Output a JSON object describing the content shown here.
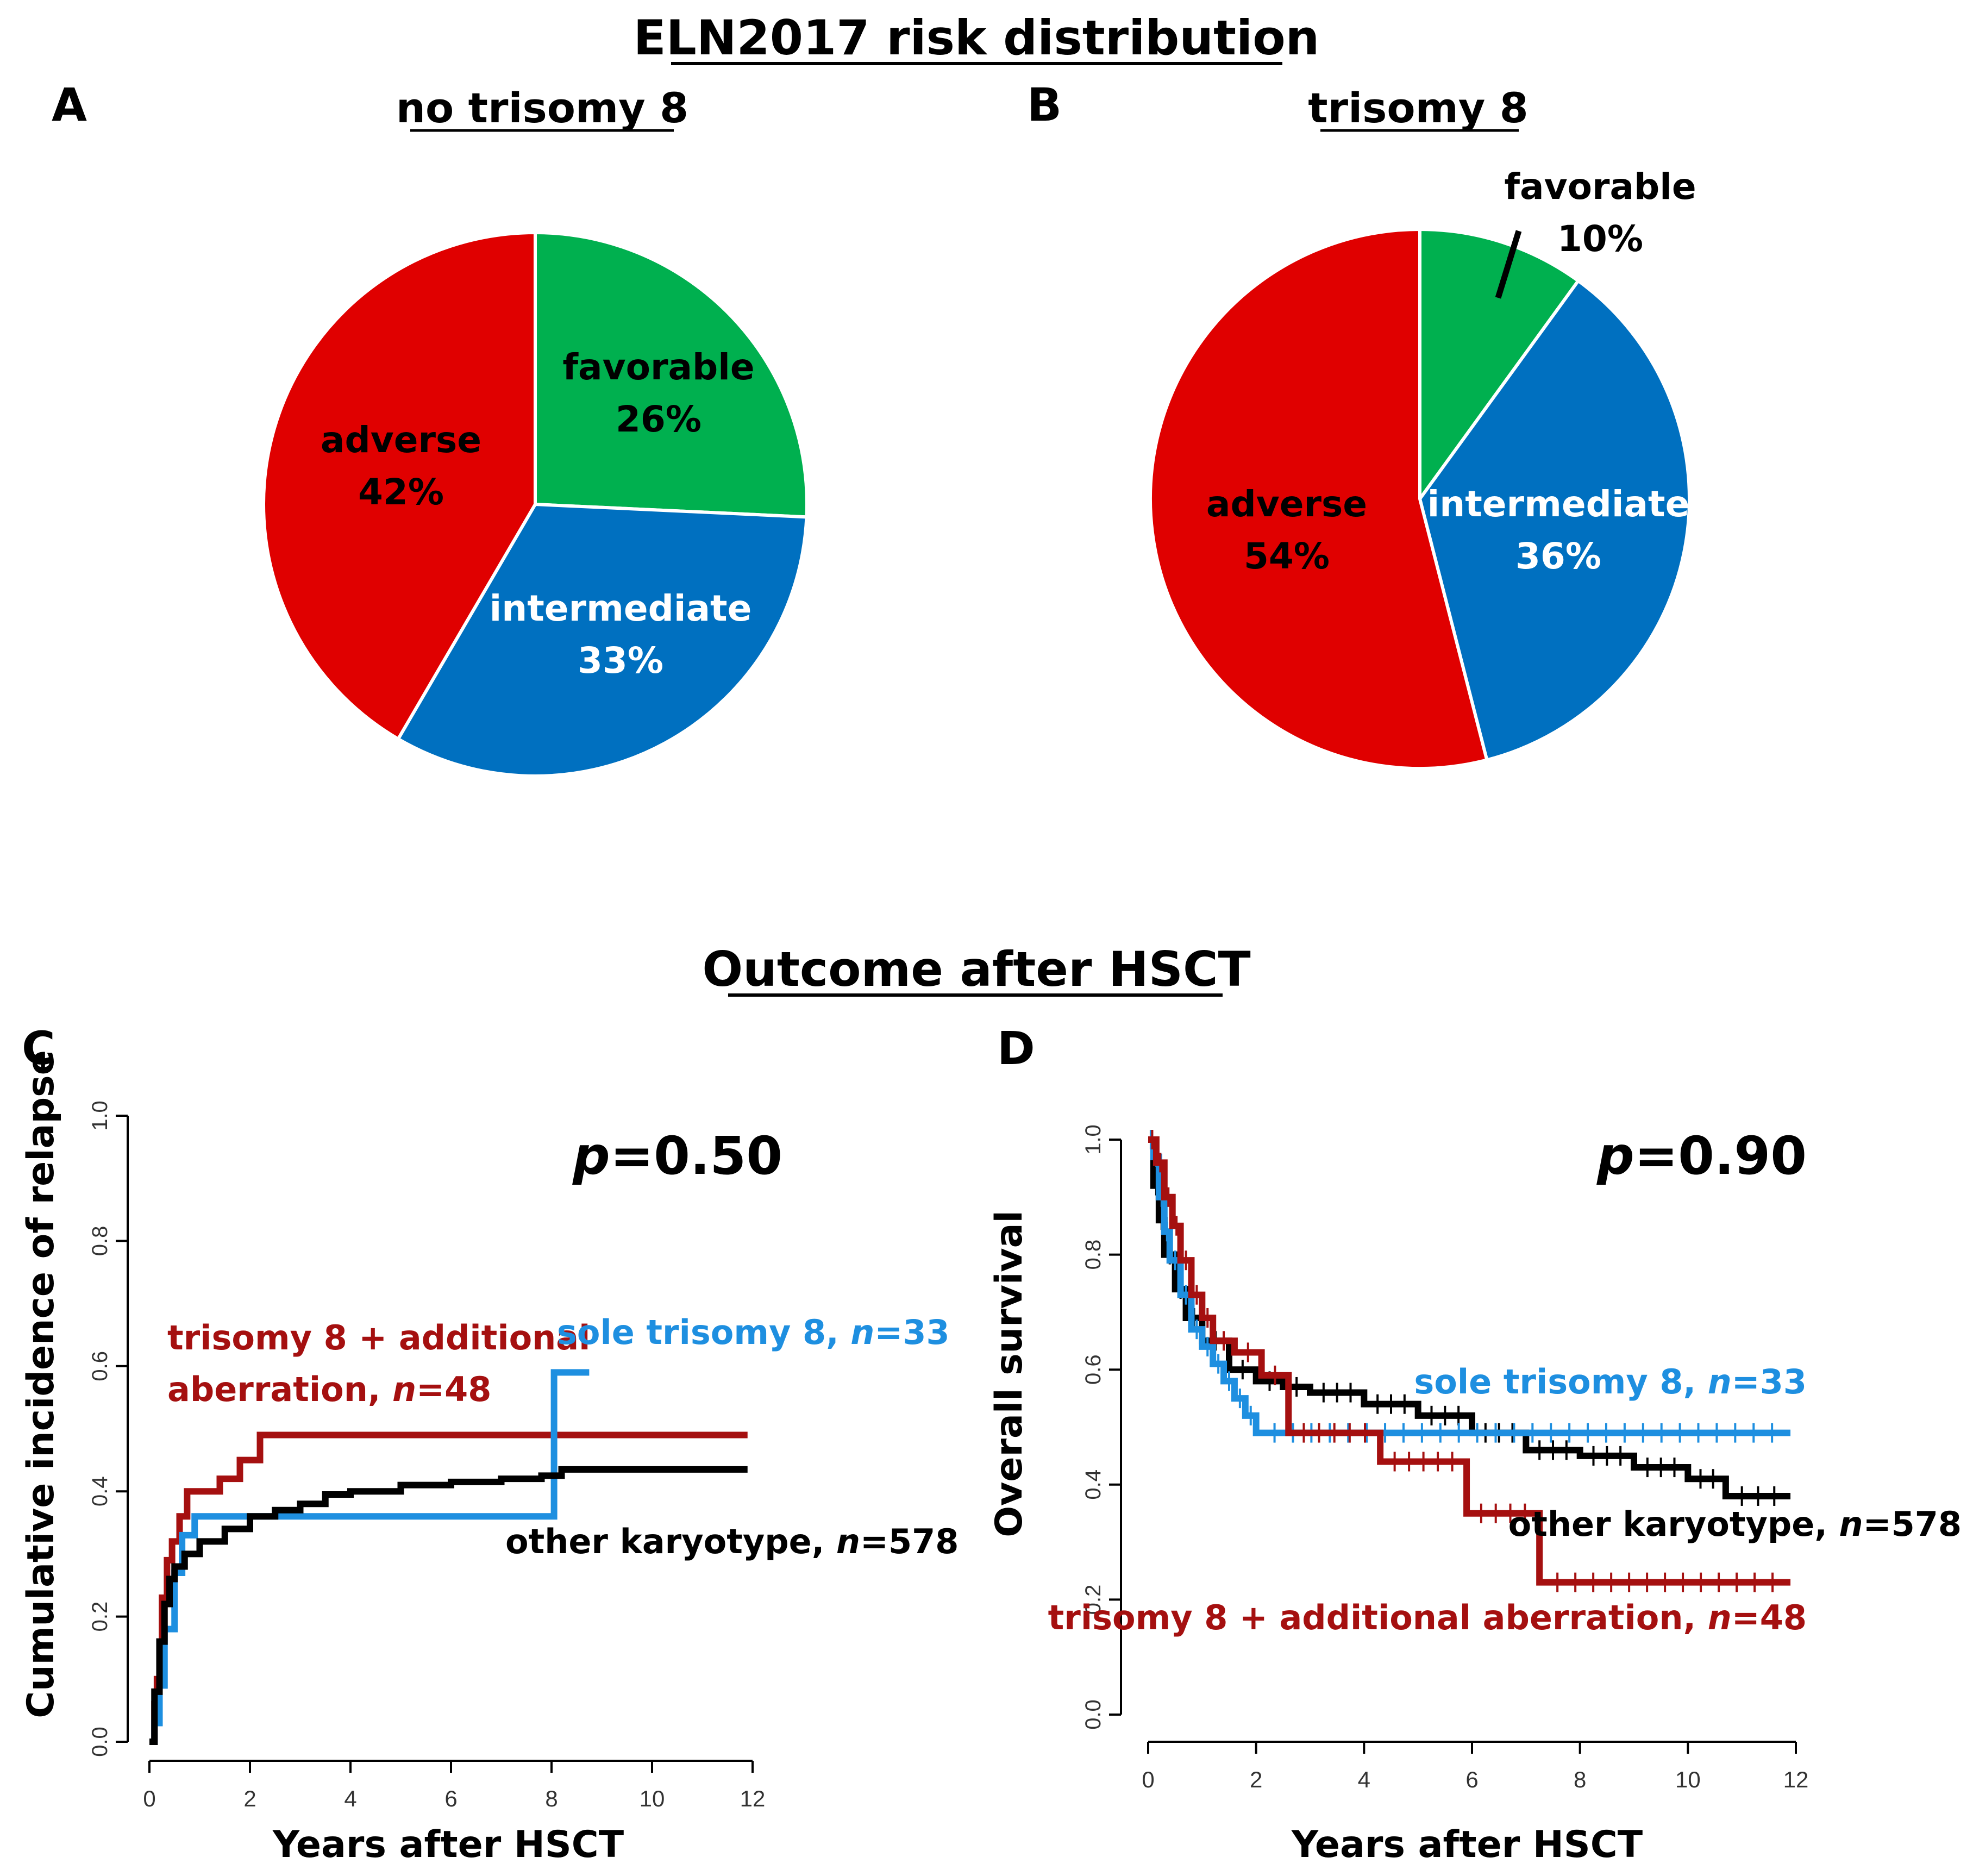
{
  "colors": {
    "adverse": "#e00000",
    "favorable": "#00b04f",
    "intermediate": "#0070c0",
    "trisomy_additional": "#a51010",
    "sole_trisomy": "#1e8fe0",
    "other_karyotype": "#000000"
  },
  "titles": {
    "top": "ELN2017 risk distribution",
    "bottom": "Outcome after HSCT"
  },
  "chart_data": [
    {
      "type": "pie",
      "panel": "A",
      "title": "no trisomy 8",
      "slices": [
        {
          "name": "favorable",
          "pct_label": "26%",
          "value": 26
        },
        {
          "name": "intermediate",
          "pct_label": "33%",
          "value": 33
        },
        {
          "name": "adverse",
          "pct_label": "42%",
          "value": 42
        }
      ]
    },
    {
      "type": "pie",
      "panel": "B",
      "title": "trisomy 8",
      "slices": [
        {
          "name": "favorable",
          "pct_label": "10%",
          "value": 10
        },
        {
          "name": "intermediate",
          "pct_label": "36%",
          "value": 36
        },
        {
          "name": "adverse",
          "pct_label": "54%",
          "value": 54
        }
      ]
    },
    {
      "type": "line",
      "panel": "C",
      "xlabel": "Years after HSCT",
      "ylabel": "Cumulative incidence of relapse",
      "xlim": [
        0,
        12
      ],
      "ylim": [
        0,
        1
      ],
      "xticks": [
        "0",
        "2",
        "4",
        "6",
        "8",
        "10",
        "12"
      ],
      "yticks": [
        "0.0",
        "0.2",
        "0.4",
        "0.6",
        "0.8",
        "1.0"
      ],
      "pvalue": "=0.50",
      "legend": {
        "additional_line1": "trisomy 8 + additional",
        "additional_line2": "aberration, ",
        "additional_n": "=48",
        "sole": "sole trisomy 8, ",
        "sole_n": "=33",
        "other": "other karyotype, ",
        "other_n": "=578"
      },
      "series": [
        {
          "name": "trisomy 8 + additional aberration",
          "color_key": "trisomy_additional",
          "x": [
            0,
            0.1,
            0.15,
            0.25,
            0.35,
            0.45,
            0.6,
            0.75,
            1.4,
            1.8,
            2.2,
            11.9
          ],
          "y": [
            0,
            0.06,
            0.1,
            0.23,
            0.29,
            0.32,
            0.36,
            0.4,
            0.42,
            0.45,
            0.49,
            0.49
          ]
        },
        {
          "name": "sole trisomy 8",
          "color_key": "sole_trisomy",
          "x": [
            0,
            0.1,
            0.2,
            0.3,
            0.5,
            0.65,
            0.9,
            8.05,
            8.75
          ],
          "y": [
            0,
            0.03,
            0.09,
            0.18,
            0.27,
            0.33,
            0.36,
            0.59,
            0.59
          ]
        },
        {
          "name": "other karyotype",
          "color_key": "other_karyotype",
          "x": [
            0,
            0.1,
            0.2,
            0.3,
            0.4,
            0.5,
            0.7,
            1.0,
            1.5,
            2.0,
            2.5,
            3.0,
            3.5,
            4.0,
            5.0,
            6.0,
            7.0,
            7.8,
            8.2,
            11.9
          ],
          "y": [
            0,
            0.08,
            0.16,
            0.22,
            0.26,
            0.28,
            0.3,
            0.32,
            0.34,
            0.36,
            0.37,
            0.38,
            0.395,
            0.4,
            0.41,
            0.415,
            0.42,
            0.425,
            0.435,
            0.435
          ]
        }
      ]
    },
    {
      "type": "line",
      "panel": "D",
      "xlabel": "Years after HSCT",
      "ylabel": "Overall survival",
      "xlim": [
        0,
        12
      ],
      "ylim": [
        0,
        1
      ],
      "xticks": [
        "0",
        "2",
        "4",
        "6",
        "8",
        "10",
        "12"
      ],
      "yticks": [
        "0.0",
        "0.2",
        "0.4",
        "0.6",
        "0.8",
        "1.0"
      ],
      "pvalue": "=0.90",
      "legend": {
        "sole": "sole trisomy 8, ",
        "sole_n": "=33",
        "other": "other karyotype, ",
        "other_n": "=578",
        "additional": "trisomy 8 + additional aberration, ",
        "additional_n": "=48"
      },
      "series": [
        {
          "name": "other karyotype",
          "color_key": "other_karyotype",
          "x": [
            0,
            0.1,
            0.2,
            0.3,
            0.5,
            0.7,
            1.0,
            1.5,
            2.0,
            2.5,
            3.0,
            4.0,
            5.0,
            6.0,
            7.0,
            8.0,
            9.0,
            10.0,
            10.7,
            11.9
          ],
          "y": [
            1.0,
            0.92,
            0.86,
            0.8,
            0.74,
            0.69,
            0.65,
            0.6,
            0.58,
            0.57,
            0.56,
            0.54,
            0.52,
            0.49,
            0.46,
            0.45,
            0.43,
            0.41,
            0.38,
            0.38
          ]
        },
        {
          "name": "sole trisomy 8",
          "color_key": "sole_trisomy",
          "x": [
            0,
            0.1,
            0.2,
            0.3,
            0.4,
            0.6,
            0.8,
            1.0,
            1.2,
            1.4,
            1.6,
            1.8,
            2.0,
            11.9
          ],
          "y": [
            1.0,
            0.97,
            0.9,
            0.84,
            0.79,
            0.73,
            0.67,
            0.64,
            0.61,
            0.58,
            0.55,
            0.52,
            0.49,
            0.49
          ]
        },
        {
          "name": "trisomy 8 + additional aberration",
          "color_key": "trisomy_additional",
          "x": [
            0,
            0.15,
            0.3,
            0.45,
            0.6,
            0.8,
            1.0,
            1.2,
            1.6,
            2.1,
            2.6,
            4.3,
            5.9,
            7.25,
            11.9
          ],
          "y": [
            1.0,
            0.96,
            0.9,
            0.85,
            0.79,
            0.73,
            0.69,
            0.65,
            0.63,
            0.59,
            0.49,
            0.44,
            0.35,
            0.23,
            0.23
          ]
        }
      ]
    }
  ]
}
